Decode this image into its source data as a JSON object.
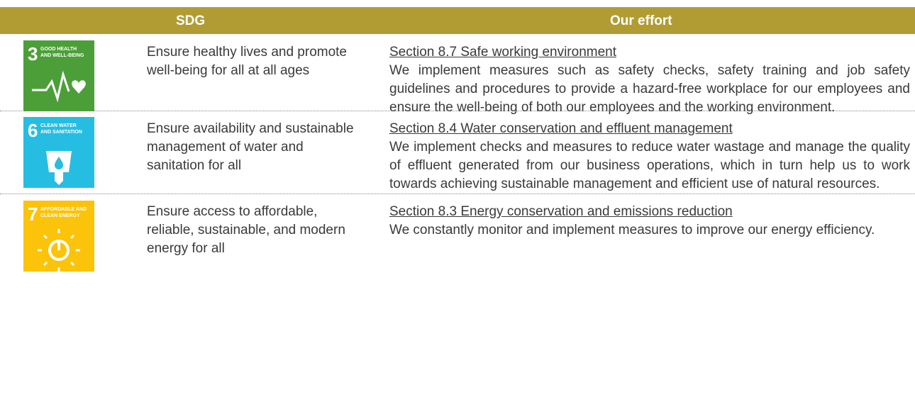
{
  "header": {
    "columns": [
      "SDG",
      "Our effort"
    ]
  },
  "rows": [
    {
      "icon": {
        "number": "3",
        "label": [
          "GOOD HEALTH",
          "AND WELL-BEING"
        ],
        "color": "#4c9f38"
      },
      "goal": "Ensure healthy lives and promote well-being for all at all ages",
      "section": "Section 8.7 Safe working environment",
      "effort": "We implement measures such as safety checks, safety training and job safety guidelines and procedures to provide a hazard-free workplace for our employees and ensure the well-being of both our employees and the working environment."
    },
    {
      "icon": {
        "number": "6",
        "label": [
          "CLEAN WATER",
          "AND SANITATION"
        ],
        "color": "#26bde2"
      },
      "goal": "Ensure availability and sustainable management of water and sanitation for all",
      "section": "Section 8.4 Water conservation and effluent management",
      "effort": "We implement checks and measures to reduce water wastage and manage the quality of effluent generated from our business operations, which in turn help us to work towards achieving sustainable management and efficient use of natural resources."
    },
    {
      "icon": {
        "number": "7",
        "label": [
          "AFFORDABLE AND",
          "CLEAN ENERGY"
        ],
        "color": "#fcc30b"
      },
      "goal": "Ensure access to affordable, reliable, sustainable, and modern energy for all",
      "section": "Section 8.3 Energy conservation and emissions reduction",
      "effort": "We constantly monitor and implement measures to improve our energy efficiency."
    }
  ]
}
